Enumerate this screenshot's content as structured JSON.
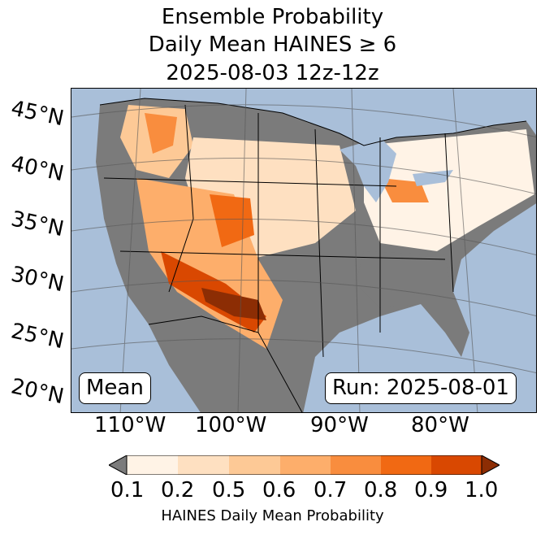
{
  "title": {
    "line1": "Ensemble Probability",
    "line2": "Daily Mean HAINES ≥ 6",
    "line3": "2025-08-03 12z-12z"
  },
  "map": {
    "latitude_labels": [
      "45°N",
      "40°N",
      "35°N",
      "30°N",
      "25°N",
      "20°N"
    ],
    "longitude_labels": [
      "110°W",
      "100°W",
      "90°W",
      "80°W"
    ],
    "mean_label": "Mean",
    "run_label": "Run: 2025-08-01",
    "colors": {
      "ocean": "#a9bfd9",
      "land_missing": "#7b7b7b",
      "lakes": "#a9bfd9"
    }
  },
  "colorbar": {
    "tick_labels": [
      "0.1",
      "0.2",
      "0.5",
      "0.6",
      "0.7",
      "0.8",
      "0.9",
      "1.0"
    ],
    "colors": [
      "#fff3e6",
      "#fee0c1",
      "#fdc996",
      "#fdae6b",
      "#f98d3e",
      "#f16913",
      "#d94801"
    ],
    "under_color": "#7b7b7b",
    "over_color": "#8c2d04",
    "label": "HAINES Daily Mean Probability"
  }
}
